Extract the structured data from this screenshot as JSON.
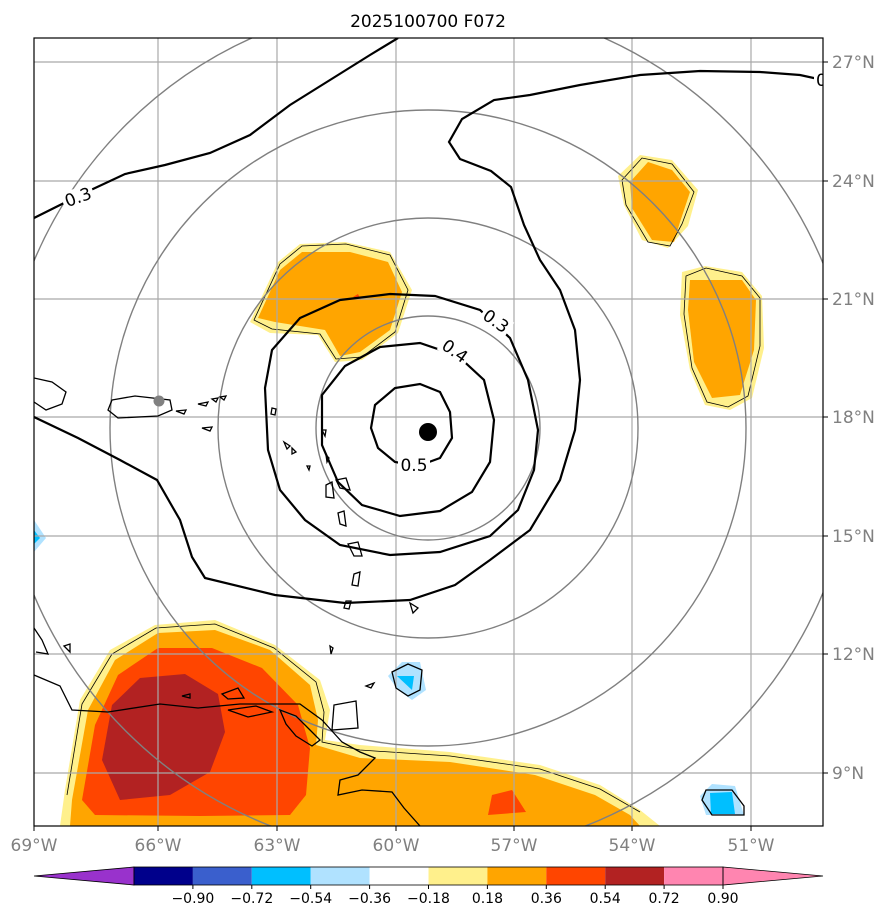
{
  "title": "2025100700 F072",
  "latitude_labels": [
    "27°N",
    "24°N",
    "21°N",
    "18°N",
    "15°N",
    "12°N",
    "9°N"
  ],
  "longitude_labels": [
    "69°W",
    "66°W",
    "63°W",
    "60°W",
    "57°W",
    "54°W",
    "51°W"
  ],
  "contour_labels": [
    "0.3",
    "0.3",
    "0.4",
    "0.5",
    "0"
  ],
  "colorbar": {
    "tick_labels": [
      "−0.90",
      "−0.72",
      "−0.54",
      "−0.36",
      "−0.18",
      "0.18",
      "0.36",
      "0.54",
      "0.72",
      "0.90"
    ],
    "colors": [
      "#9932cc",
      "#00008b",
      "#3a5fcd",
      "#00bfff",
      "#b0e2ff",
      "#ffffff",
      "#fff08c",
      "#ffa500",
      "#ff4500",
      "#b22222",
      "#ff85b0"
    ]
  },
  "storm_center": {
    "lat": 17.7,
    "lon": -58.8
  },
  "reference_point": {
    "lat": 18.4,
    "lon": -66.0
  }
}
